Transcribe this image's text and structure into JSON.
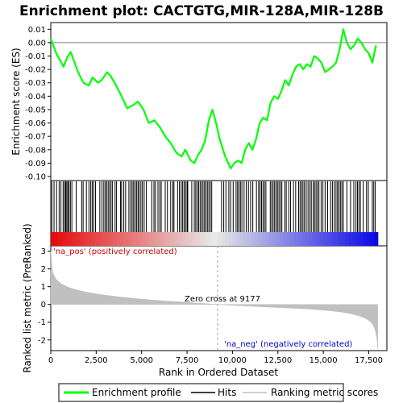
{
  "chart_data": {
    "type": "line",
    "title": "Enrichment plot: CACTGTG,MIR-128A,MIR-128B",
    "xlabel": "Rank in Ordered Dataset",
    "ylabel_top": "Enrichment score (ES)",
    "ylabel_bottom": "Ranked list metric (PreRanked)",
    "x_ticks": [
      0,
      2500,
      5000,
      7500,
      10000,
      12500,
      15000,
      17500
    ],
    "x_tick_labels": [
      "0",
      "2,500",
      "5,000",
      "7,500",
      "10,000",
      "12,500",
      "15,000",
      "17,500"
    ],
    "xlim": [
      0,
      18500
    ],
    "es_ylim": [
      -0.103,
      0.015
    ],
    "es_ticks": [
      0.01,
      0.0,
      -0.01,
      -0.02,
      -0.03,
      -0.04,
      -0.05,
      -0.06,
      -0.07,
      -0.08,
      -0.09,
      -0.1
    ],
    "es_tick_labels": [
      "0.01",
      "0.00",
      "-0.01",
      "-0.02",
      "-0.03",
      "-0.04",
      "-0.05",
      "-0.06",
      "-0.07",
      "-0.08",
      "-0.09",
      "-0.10"
    ],
    "metric_ylim": [
      -2.6,
      3.3
    ],
    "metric_ticks": [
      3,
      2,
      1,
      0,
      -1,
      -2
    ],
    "metric_tick_labels": [
      "3",
      "2",
      "1",
      "0",
      "-1",
      "-2"
    ],
    "enrichment_profile": {
      "name": "Enrichment profile",
      "color": "#00ff00",
      "x": [
        0,
        300,
        700,
        900,
        1100,
        1500,
        1800,
        2100,
        2300,
        2600,
        2800,
        3100,
        3300,
        3600,
        3900,
        4200,
        4500,
        4800,
        5100,
        5400,
        5700,
        6000,
        6300,
        6600,
        6900,
        7200,
        7400,
        7700,
        7900,
        8100,
        8300,
        8500,
        8700,
        8900,
        9100,
        9300,
        9600,
        9900,
        10100,
        10300,
        10500,
        10700,
        10900,
        11100,
        11300,
        11500,
        11700,
        11900,
        12100,
        12300,
        12500,
        12700,
        12900,
        13100,
        13300,
        13500,
        13700,
        13900,
        14100,
        14300,
        14500,
        14700,
        14900,
        15100,
        15300,
        15500,
        15700,
        15900,
        16100,
        16300,
        16500,
        16700,
        16900,
        17100,
        17300,
        17500,
        17700,
        17900
      ],
      "y": [
        0.003,
        -0.008,
        -0.018,
        -0.011,
        -0.007,
        -0.022,
        -0.03,
        -0.032,
        -0.026,
        -0.03,
        -0.028,
        -0.022,
        -0.025,
        -0.032,
        -0.04,
        -0.049,
        -0.047,
        -0.044,
        -0.05,
        -0.06,
        -0.058,
        -0.063,
        -0.07,
        -0.075,
        -0.082,
        -0.085,
        -0.08,
        -0.088,
        -0.09,
        -0.084,
        -0.08,
        -0.073,
        -0.058,
        -0.05,
        -0.06,
        -0.072,
        -0.085,
        -0.094,
        -0.09,
        -0.088,
        -0.09,
        -0.08,
        -0.075,
        -0.08,
        -0.072,
        -0.06,
        -0.056,
        -0.058,
        -0.045,
        -0.04,
        -0.042,
        -0.036,
        -0.028,
        -0.032,
        -0.024,
        -0.018,
        -0.016,
        -0.02,
        -0.016,
        -0.018,
        -0.01,
        -0.012,
        -0.015,
        -0.022,
        -0.02,
        -0.018,
        -0.015,
        -0.005,
        0.01,
        0.0,
        -0.005,
        -0.002,
        0.003,
        0.0,
        -0.005,
        -0.008,
        -0.015,
        -0.002
      ]
    },
    "hits": {
      "name": "Hits",
      "color": "#000000",
      "positions": [
        60,
        180,
        320,
        460,
        560,
        680,
        760,
        820,
        880,
        940,
        1000,
        1080,
        1160,
        1400,
        1700,
        1780,
        1960,
        2100,
        2200,
        2280,
        2360,
        2460,
        2700,
        2820,
        2920,
        3000,
        3080,
        3160,
        3240,
        3320,
        3400,
        3540,
        3620,
        3840,
        3900,
        4020,
        4120,
        4300,
        4400,
        4480,
        4560,
        4640,
        4720,
        4800,
        4860,
        4960,
        5040,
        5140,
        5260,
        5560,
        5680,
        5760,
        5900,
        6000,
        6080,
        6300,
        6420,
        6600,
        6720,
        6780,
        6980,
        7080,
        7180,
        7260,
        7340,
        7420,
        7500,
        7540,
        7760,
        7900,
        7980,
        8060,
        8140,
        8220,
        8300,
        8380,
        8460,
        8540,
        8620,
        8700,
        8780,
        8860,
        9400,
        9520,
        9640,
        9800,
        9900,
        10040,
        10200,
        10280,
        10360,
        10440,
        10520,
        10640,
        10760,
        10880,
        11000,
        11120,
        11320,
        11440,
        11520,
        11600,
        11680,
        11760,
        11840,
        12080,
        12160,
        12240,
        12320,
        12400,
        12480,
        12560,
        12640,
        12720,
        12880,
        12960,
        13100,
        13200,
        13360,
        13480,
        13640,
        13720,
        13800,
        13880,
        13960,
        14060,
        14160,
        14260,
        14340,
        14440,
        14520,
        14600,
        14680,
        14760,
        14880,
        14980,
        15100,
        15240,
        15400,
        15500,
        15600,
        15700,
        15780,
        15860,
        15940,
        16020,
        16100,
        16300,
        16500,
        16680,
        16800,
        16880,
        16960,
        17040,
        17200,
        17380,
        17480,
        17700,
        17780,
        17860
      ]
    },
    "ranking_metric": {
      "name": "Ranking metric scores",
      "color": "#c0c0c0",
      "x": [
        0,
        100,
        300,
        600,
        1000,
        1500,
        2000,
        3000,
        4000,
        5000,
        6000,
        7000,
        8000,
        9177,
        10000,
        11000,
        12000,
        13000,
        14000,
        15000,
        15500,
        16000,
        16500,
        17000,
        17300,
        17500,
        17700,
        17850,
        17950,
        18000
      ],
      "y": [
        3.0,
        1.8,
        1.4,
        1.15,
        0.95,
        0.8,
        0.68,
        0.52,
        0.4,
        0.3,
        0.22,
        0.15,
        0.08,
        0.0,
        -0.05,
        -0.1,
        -0.15,
        -0.2,
        -0.25,
        -0.32,
        -0.37,
        -0.43,
        -0.52,
        -0.65,
        -0.78,
        -0.9,
        -1.1,
        -1.4,
        -1.9,
        -2.5
      ]
    },
    "annotations": {
      "na_pos": "'na_pos' (positively correlated)",
      "na_neg": "'na_neg' (negatively correlated)",
      "zero_cross": "Zero cross at 9177",
      "zero_cross_x": 9177
    },
    "legend": {
      "placement": "bottom",
      "entries": [
        "Enrichment profile",
        "Hits",
        "Ranking metric scores"
      ]
    }
  }
}
